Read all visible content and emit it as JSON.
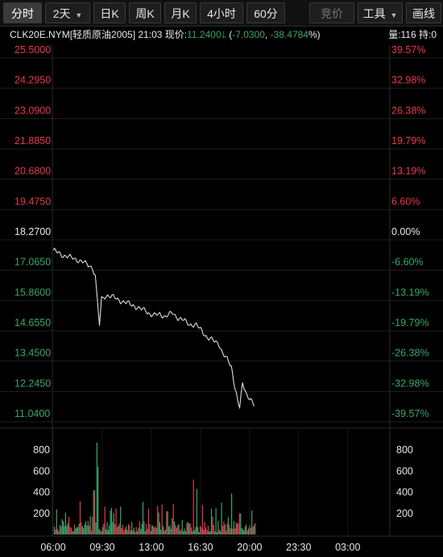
{
  "toolbar": {
    "buttons": [
      {
        "label": "分时",
        "active": true
      },
      {
        "label": "2天",
        "dropdown": true
      },
      {
        "label": "日K"
      },
      {
        "label": "周K"
      },
      {
        "label": "月K"
      },
      {
        "label": "4小时"
      },
      {
        "label": "60分"
      }
    ],
    "compete_label": "竞价",
    "tools_label": "工具",
    "draw_label": "画线"
  },
  "info": {
    "symbol": "CLK20E.NYM[轻质原油2005]",
    "time": "21:03",
    "price_label": "现价:",
    "price": "11.2400",
    "change": "-7.0300",
    "change_pct": "-38.4784",
    "pct_sign": "%)",
    "volume_text": "量:116 持:0"
  },
  "colors": {
    "up": "#e8394d",
    "down": "#3aa56c",
    "neutral": "#e6e6e6",
    "line": "#dcdcdc"
  },
  "chart_data": {
    "type": "line",
    "price_ticks": [
      "25.5000",
      "24.2950",
      "23.0900",
      "21.8850",
      "20.6800",
      "19.4750",
      "18.2700",
      "17.0650",
      "15.8600",
      "14.6550",
      "13.4500",
      "12.2450",
      "11.0400"
    ],
    "pct_ticks": [
      "39.57%",
      "32.98%",
      "26.38%",
      "19.79%",
      "13.19%",
      "6.60%",
      "0.00%",
      "-6.60%",
      "-13.19%",
      "-19.79%",
      "-26.38%",
      "-32.98%",
      "-39.57%"
    ],
    "ylim": [
      11.04,
      25.5
    ],
    "prev_close": 18.27,
    "x_ticks": [
      "06:00",
      "09:30",
      "13:00",
      "16:30",
      "20:00",
      "23:30",
      "03:00"
    ],
    "price_series": [
      [
        0,
        17.55
      ],
      [
        0.3,
        17.45
      ],
      [
        0.6,
        17.35
      ],
      [
        1.0,
        17.3
      ],
      [
        1.5,
        17.2
      ],
      [
        2.0,
        17.1
      ],
      [
        2.5,
        16.95
      ],
      [
        2.8,
        16.85
      ],
      [
        3.0,
        16.5
      ],
      [
        3.15,
        15.5
      ],
      [
        3.3,
        14.55
      ],
      [
        3.45,
        15.6
      ],
      [
        3.8,
        15.75
      ],
      [
        4.2,
        15.7
      ],
      [
        4.7,
        15.55
      ],
      [
        5.2,
        15.45
      ],
      [
        5.7,
        15.35
      ],
      [
        6.2,
        15.2
      ],
      [
        6.6,
        15.15
      ],
      [
        6.9,
        15.0
      ],
      [
        7.2,
        14.95
      ],
      [
        7.6,
        15.0
      ],
      [
        8.0,
        14.9
      ],
      [
        8.5,
        15.05
      ],
      [
        8.9,
        14.85
      ],
      [
        9.3,
        14.75
      ],
      [
        9.7,
        14.6
      ],
      [
        10.2,
        14.55
      ],
      [
        10.6,
        14.35
      ],
      [
        11.0,
        14.05
      ],
      [
        11.4,
        13.95
      ],
      [
        11.8,
        13.85
      ],
      [
        12.1,
        13.4
      ],
      [
        12.4,
        13.2
      ],
      [
        12.7,
        12.95
      ],
      [
        12.95,
        12.1
      ],
      [
        13.15,
        11.55
      ],
      [
        13.3,
        11.25
      ],
      [
        13.5,
        12.3
      ],
      [
        13.8,
        11.8
      ],
      [
        14.1,
        11.55
      ],
      [
        14.35,
        11.35
      ]
    ],
    "volume_ticks": [
      "800",
      "600",
      "400",
      "200"
    ],
    "volume_ylim": [
      0,
      900
    ]
  }
}
